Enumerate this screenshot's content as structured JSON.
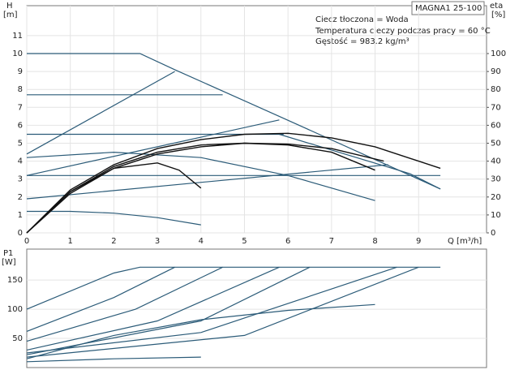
{
  "chart_data": [
    {
      "type": "line",
      "y_label": "H",
      "y_unit": "[m]",
      "y2_label": "eta",
      "y2_unit": "[%]",
      "x_label": "Q [m³/h]",
      "model": "MAGNA1 25-100",
      "annotations": [
        "Ciecz tłoczona = Woda",
        "Temperatura cieczy podczas pracy = 60 °C",
        "Gęstość = 983.2 kg/m³"
      ],
      "xlim": [
        0,
        10.56
      ],
      "xticks": [
        0,
        1,
        2,
        3,
        4,
        5,
        6,
        7,
        8,
        9
      ],
      "ylim": [
        0,
        12.67
      ],
      "yticks": [
        0,
        1,
        2,
        3,
        4,
        5,
        6,
        7,
        8,
        9,
        10,
        11
      ],
      "y2lim": [
        0,
        126.7
      ],
      "y2ticks": [
        0,
        10,
        20,
        30,
        40,
        50,
        60,
        70,
        80,
        90,
        100
      ],
      "grid": true,
      "series": [
        {
          "color": "#2b5b78",
          "x": [
            0,
            2.6,
            3.4,
            5.8,
            9.5
          ],
          "values": [
            10,
            10,
            9.1,
            6.5,
            2.45
          ]
        },
        {
          "color": "#2b5b78",
          "x": [
            0,
            3.4
          ],
          "values": [
            4.4,
            9.0
          ]
        },
        {
          "color": "#2b5b78",
          "x": [
            0,
            4.5
          ],
          "values": [
            7.7,
            7.7
          ]
        },
        {
          "color": "#2b5b78",
          "x": [
            0,
            5.9
          ],
          "values": [
            5.5,
            5.5
          ]
        },
        {
          "color": "#2b5b78",
          "x": [
            0,
            5.8
          ],
          "values": [
            3.2,
            6.3
          ]
        },
        {
          "color": "#2b5b78",
          "x": [
            0,
            9.5
          ],
          "values": [
            3.2,
            3.2
          ]
        },
        {
          "color": "#2b5b78",
          "x": [
            0,
            8.3
          ],
          "values": [
            1.9,
            3.8
          ]
        },
        {
          "color": "#2b5b78",
          "x": [
            0,
            1,
            2,
            3,
            4
          ],
          "values": [
            1.2,
            1.2,
            1.1,
            0.85,
            0.45
          ]
        },
        {
          "color": "#2b5b78",
          "x": [
            0,
            2,
            4,
            6,
            8
          ],
          "values": [
            4.2,
            4.5,
            4.2,
            3.2,
            1.8
          ]
        },
        {
          "color": "#2b5b78",
          "x": [
            5.8,
            8.8,
            9.5
          ],
          "values": [
            5.5,
            3.3,
            2.45
          ]
        },
        {
          "color": "#111111",
          "axis": "y2",
          "x": [
            0,
            1,
            2,
            3,
            4,
            5,
            6,
            7,
            8,
            9,
            9.5
          ],
          "values": [
            0,
            24,
            38,
            47,
            52,
            55,
            55.5,
            53,
            48,
            40,
            36
          ]
        },
        {
          "color": "#111111",
          "axis": "y2",
          "x": [
            0,
            1,
            2,
            3,
            4,
            5,
            6,
            7,
            8
          ],
          "values": [
            0,
            23,
            37,
            45,
            49,
            50,
            49,
            45,
            35
          ]
        },
        {
          "color": "#111111",
          "axis": "y2",
          "x": [
            0,
            1,
            2,
            3,
            4,
            5,
            6,
            7,
            8.2
          ],
          "values": [
            0,
            22,
            36,
            44,
            48,
            50,
            49.5,
            47,
            40
          ]
        },
        {
          "color": "#111111",
          "axis": "y2",
          "x": [
            0,
            1,
            2,
            3,
            3.5,
            4
          ],
          "values": [
            0,
            23,
            36,
            39,
            35,
            25
          ]
        }
      ]
    },
    {
      "type": "line",
      "y_label": "P1",
      "y_unit": "[W]",
      "xlim": [
        0,
        10.56
      ],
      "ylim": [
        0,
        203
      ],
      "yticks": [
        50,
        100,
        150
      ],
      "grid": true,
      "series": [
        {
          "color": "#2b5b78",
          "x": [
            0,
            2.0,
            2.6,
            9.5
          ],
          "values": [
            100,
            162,
            172,
            172
          ]
        },
        {
          "color": "#2b5b78",
          "x": [
            0,
            2.0,
            3.4
          ],
          "values": [
            62,
            120,
            172
          ]
        },
        {
          "color": "#2b5b78",
          "x": [
            0,
            2.5,
            4.5
          ],
          "values": [
            45,
            100,
            172
          ]
        },
        {
          "color": "#2b5b78",
          "x": [
            0,
            3,
            5.8
          ],
          "values": [
            30,
            80,
            172
          ]
        },
        {
          "color": "#2b5b78",
          "x": [
            0,
            4,
            6.5
          ],
          "values": [
            22,
            80,
            172
          ]
        },
        {
          "color": "#2b5b78",
          "x": [
            0,
            4,
            8.5
          ],
          "values": [
            25,
            60,
            172
          ]
        },
        {
          "color": "#2b5b78",
          "x": [
            0,
            5,
            9.0
          ],
          "values": [
            18,
            55,
            172
          ]
        },
        {
          "color": "#2b5b78",
          "x": [
            0,
            2,
            4,
            6,
            8
          ],
          "values": [
            15,
            55,
            82,
            98,
            108
          ]
        },
        {
          "color": "#2b5b78",
          "x": [
            0,
            2,
            4
          ],
          "values": [
            10,
            15,
            18
          ]
        }
      ]
    }
  ]
}
